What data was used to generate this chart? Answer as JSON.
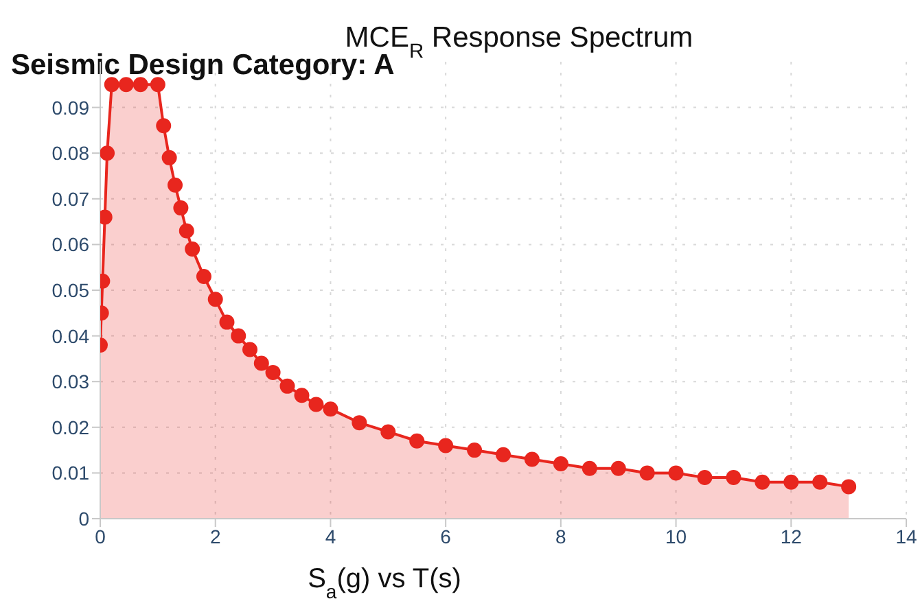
{
  "chart_data": {
    "type": "area",
    "title": "MCE$_{R}$ Response Spectrum",
    "xlabel": "S$_{a}$(g) vs T(s)",
    "annotations": [
      "Seismic Design Category: A"
    ],
    "x": [
      0,
      0.02,
      0.04,
      0.08,
      0.12,
      0.2,
      0.45,
      0.7,
      1.0,
      1.1,
      1.2,
      1.3,
      1.4,
      1.5,
      1.6,
      1.8,
      2.0,
      2.2,
      2.4,
      2.6,
      2.8,
      3,
      3.25,
      3.5,
      3.75,
      4,
      4.5,
      5,
      5.5,
      6,
      6.5,
      7,
      7.5,
      8,
      8.5,
      9,
      9.5,
      10,
      10.5,
      11,
      11.5,
      12,
      12.5,
      13
    ],
    "series": [
      {
        "color": "#e8261e",
        "values": [
          0.038,
          0.045,
          0.052,
          0.066,
          0.08,
          0.095,
          0.095,
          0.095,
          0.095,
          0.086,
          0.079,
          0.073,
          0.068,
          0.063,
          0.059,
          0.053,
          0.048,
          0.043,
          0.04,
          0.037,
          0.034,
          0.032,
          0.029,
          0.027,
          0.025,
          0.024,
          0.021,
          0.019,
          0.017,
          0.016,
          0.015,
          0.014,
          0.013,
          0.012,
          0.011,
          0.011,
          0.01,
          0.01,
          0.009,
          0.009,
          0.008,
          0.008,
          0.008,
          0.007
        ]
      }
    ],
    "xlim": [
      0,
      14
    ],
    "xticks": [
      0,
      2,
      4,
      6,
      8,
      10,
      12,
      14
    ],
    "ylim": [
      0,
      0.1
    ],
    "yticks": [
      0,
      {
        "value": 0.01,
        "label": "0.01"
      },
      {
        "value": 0.02,
        "label": "0.02"
      },
      {
        "value": 0.03,
        "label": "0.03"
      },
      {
        "value": 0.04,
        "label": "0.04"
      },
      {
        "value": 0.05,
        "label": "0.05"
      },
      {
        "value": 0.06,
        "label": "0.06"
      },
      {
        "value": 0.07,
        "label": "0.07"
      },
      {
        "value": 0.08,
        "label": "0.08"
      },
      {
        "value": 0.09,
        "label": "0.09"
      }
    ],
    "grid": true,
    "legend": false,
    "marker": "circle"
  }
}
